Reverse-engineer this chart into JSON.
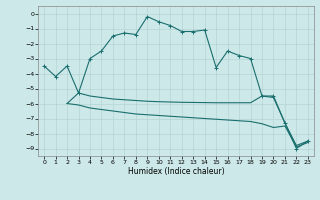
{
  "title": "",
  "xlabel": "Humidex (Indice chaleur)",
  "xlim": [
    -0.5,
    23.5
  ],
  "ylim": [
    -9.5,
    0.5
  ],
  "yticks": [
    0,
    -1,
    -2,
    -3,
    -4,
    -5,
    -6,
    -7,
    -8,
    -9
  ],
  "xticks": [
    0,
    1,
    2,
    3,
    4,
    5,
    6,
    7,
    8,
    9,
    10,
    11,
    12,
    13,
    14,
    15,
    16,
    17,
    18,
    19,
    20,
    21,
    22,
    23
  ],
  "bg_color": "#cde8e8",
  "grid_color": "#b0d0d0",
  "line_color": "#1a6e6e",
  "line1_x": [
    0,
    1,
    2,
    3,
    4,
    5,
    6,
    7,
    8,
    9,
    10,
    11,
    12,
    13,
    14,
    15,
    16,
    17,
    18,
    19,
    20,
    21,
    22,
    23
  ],
  "line1_y": [
    -3.5,
    -4.2,
    -3.5,
    -5.3,
    -3.0,
    -2.5,
    -1.5,
    -1.3,
    -1.4,
    -0.2,
    -0.55,
    -0.8,
    -1.2,
    -1.2,
    -1.1,
    -3.6,
    -2.5,
    -2.8,
    -3.0,
    -5.5,
    -5.5,
    -7.3,
    -9.0,
    -8.5
  ],
  "line2_x": [
    2,
    3,
    4,
    5,
    6,
    7,
    8,
    9,
    10,
    11,
    12,
    13,
    14,
    15,
    16,
    17,
    18,
    19,
    20,
    21,
    22,
    23
  ],
  "line2_y": [
    -6.0,
    -5.3,
    -5.5,
    -5.6,
    -5.7,
    -5.75,
    -5.8,
    -5.85,
    -5.88,
    -5.9,
    -5.92,
    -5.93,
    -5.94,
    -5.95,
    -5.95,
    -5.95,
    -5.95,
    -5.5,
    -5.6,
    -7.3,
    -8.8,
    -8.5
  ],
  "line3_x": [
    2,
    3,
    4,
    5,
    6,
    7,
    8,
    9,
    10,
    11,
    12,
    13,
    14,
    15,
    16,
    17,
    18,
    19,
    20,
    21,
    22,
    23
  ],
  "line3_y": [
    -6.0,
    -6.1,
    -6.3,
    -6.4,
    -6.5,
    -6.6,
    -6.7,
    -6.75,
    -6.8,
    -6.85,
    -6.9,
    -6.95,
    -7.0,
    -7.05,
    -7.1,
    -7.15,
    -7.2,
    -7.35,
    -7.6,
    -7.5,
    -8.9,
    -8.6
  ]
}
